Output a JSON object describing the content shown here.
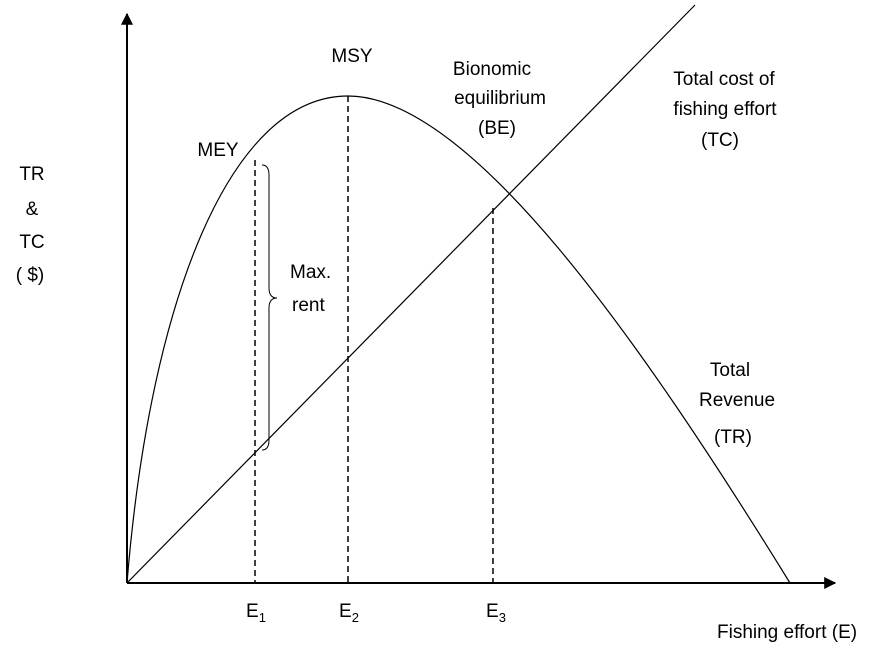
{
  "y_axis_label": [
    "TR",
    "&",
    "TC",
    "( $)"
  ],
  "x_axis_label": "Fishing effort (E)",
  "points": {
    "mey": "MEY",
    "msy": "MSY",
    "be": [
      "Bionomic",
      "equilibrium",
      "(BE)"
    ]
  },
  "curves": {
    "tc": [
      "Total cost of",
      "fishing effort",
      "(TC)"
    ],
    "tr": [
      "Total",
      "Revenue",
      "(TR)"
    ]
  },
  "rent": [
    "Max.",
    "rent"
  ],
  "efforts": [
    {
      "letter": "E",
      "sub": "1"
    },
    {
      "letter": "E",
      "sub": "2"
    },
    {
      "letter": "E",
      "sub": "3"
    }
  ]
}
